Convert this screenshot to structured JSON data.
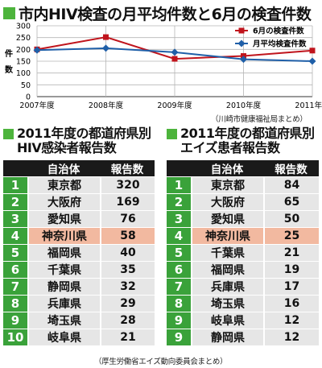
{
  "header": {
    "title": "市内HIV検査の月平均件数と6月の検査件数"
  },
  "chart_data": {
    "type": "line",
    "categories": [
      "2007年度",
      "2008年度",
      "2009年度",
      "2010年度",
      "2011年度"
    ],
    "series": [
      {
        "name": "6月の検査件数",
        "values": [
          200,
          252,
          160,
          172,
          195
        ],
        "color": "#c0141c",
        "marker": "square"
      },
      {
        "name": "月平均検査件数",
        "values": [
          197,
          205,
          188,
          158,
          150
        ],
        "color": "#1f5fa8",
        "marker": "diamond"
      }
    ],
    "ylabel": "件数",
    "yticks": [
      0,
      50,
      100,
      150,
      200,
      250,
      300
    ],
    "ylim": [
      0,
      300
    ],
    "grid": true,
    "legend": "top-right"
  },
  "chart_source": "（川崎市健康福祉局まとめ）",
  "left_table": {
    "title_line1": "2011年度の都道府県別",
    "title_line2": "HIV感染者報告数",
    "col_region": "自治体",
    "col_count": "報告数",
    "rows": [
      {
        "rank": "1",
        "name": "東京都",
        "count": "320"
      },
      {
        "rank": "2",
        "name": "大阪府",
        "count": "169"
      },
      {
        "rank": "3",
        "name": "愛知県",
        "count": "76"
      },
      {
        "rank": "4",
        "name": "神奈川県",
        "count": "58"
      },
      {
        "rank": "5",
        "name": "福岡県",
        "count": "40"
      },
      {
        "rank": "6",
        "name": "千葉県",
        "count": "35"
      },
      {
        "rank": "7",
        "name": "静岡県",
        "count": "32"
      },
      {
        "rank": "8",
        "name": "兵庫県",
        "count": "29"
      },
      {
        "rank": "9",
        "name": "埼玉県",
        "count": "28"
      },
      {
        "rank": "10",
        "name": "岐阜県",
        "count": "21"
      }
    ],
    "highlight_color": "#f2b9a0"
  },
  "right_table": {
    "title_line1": "2011年度の都道府県別",
    "title_line2": "エイズ患者報告数",
    "col_region": "自治体",
    "col_count": "報告数",
    "rows": [
      {
        "rank": "1",
        "name": "東京都",
        "count": "84"
      },
      {
        "rank": "2",
        "name": "大阪府",
        "count": "65"
      },
      {
        "rank": "3",
        "name": "愛知県",
        "count": "50"
      },
      {
        "rank": "4",
        "name": "神奈川県",
        "count": "25"
      },
      {
        "rank": "5",
        "name": "千葉県",
        "count": "21"
      },
      {
        "rank": "6",
        "name": "福岡県",
        "count": "19"
      },
      {
        "rank": "7",
        "name": "兵庫県",
        "count": "17"
      },
      {
        "rank": "8",
        "name": "埼玉県",
        "count": "16"
      },
      {
        "rank": "9",
        "name": "岐阜県",
        "count": "12"
      },
      {
        "rank": "9",
        "name": "静岡県",
        "count": "12"
      }
    ]
  },
  "table_source": "（厚生労働省エイズ動向委員会まとめ）"
}
